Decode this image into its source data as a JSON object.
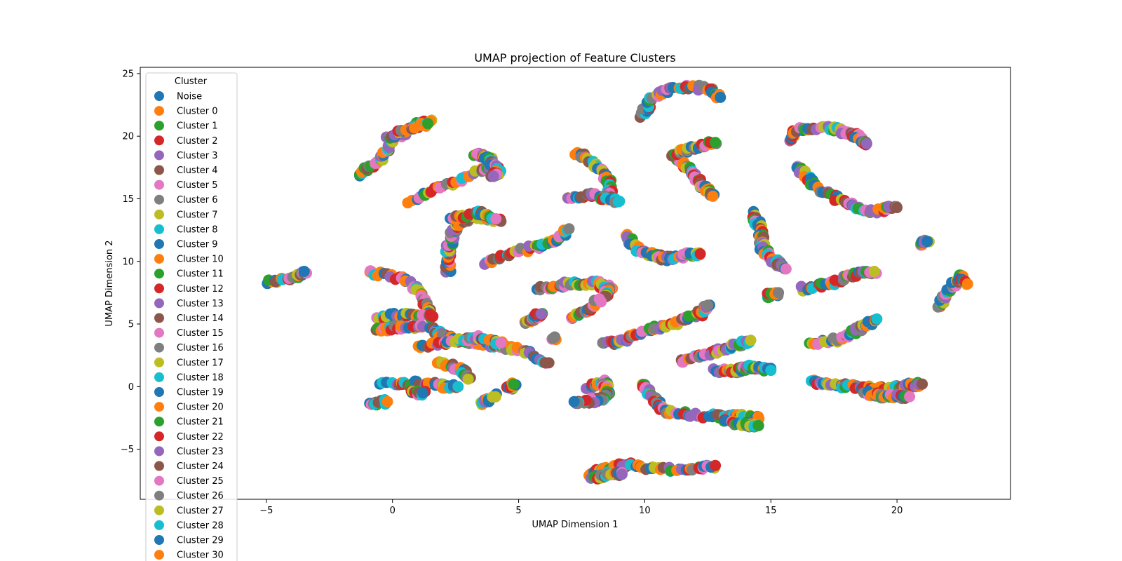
{
  "chart_data": {
    "type": "scatter",
    "title": "UMAP projection of Feature Clusters",
    "xlabel": "UMAP Dimension 1",
    "ylabel": "UMAP Dimension 2",
    "xlim": [
      -10,
      24.5
    ],
    "ylim": [
      -9,
      25.5
    ],
    "xticks": [
      -5,
      0,
      5,
      10,
      15,
      20
    ],
    "xtick_labels": [
      "−5",
      "0",
      "5",
      "10",
      "15",
      "20"
    ],
    "yticks": [
      -5,
      0,
      5,
      10,
      15,
      20,
      25
    ],
    "ytick_labels": [
      "−5",
      "0",
      "5",
      "10",
      "15",
      "20",
      "25"
    ],
    "grid": false,
    "legend": {
      "title": "Cluster",
      "placement": "upper-left"
    },
    "series": [
      {
        "name": "Noise",
        "color": "#1f77b4"
      },
      {
        "name": "Cluster 0",
        "color": "#ff7f0e"
      },
      {
        "name": "Cluster 1",
        "color": "#2ca02c"
      },
      {
        "name": "Cluster 2",
        "color": "#d62728"
      },
      {
        "name": "Cluster 3",
        "color": "#9467bd"
      },
      {
        "name": "Cluster 4",
        "color": "#8c564b"
      },
      {
        "name": "Cluster 5",
        "color": "#e377c2"
      },
      {
        "name": "Cluster 6",
        "color": "#7f7f7f"
      },
      {
        "name": "Cluster 7",
        "color": "#bcbd22"
      },
      {
        "name": "Cluster 8",
        "color": "#17becf"
      },
      {
        "name": "Cluster 9",
        "color": "#1f77b4"
      },
      {
        "name": "Cluster 10",
        "color": "#ff7f0e"
      },
      {
        "name": "Cluster 11",
        "color": "#2ca02c"
      },
      {
        "name": "Cluster 12",
        "color": "#d62728"
      },
      {
        "name": "Cluster 13",
        "color": "#9467bd"
      },
      {
        "name": "Cluster 14",
        "color": "#8c564b"
      },
      {
        "name": "Cluster 15",
        "color": "#e377c2"
      },
      {
        "name": "Cluster 16",
        "color": "#7f7f7f"
      },
      {
        "name": "Cluster 17",
        "color": "#bcbd22"
      },
      {
        "name": "Cluster 18",
        "color": "#17becf"
      },
      {
        "name": "Cluster 19",
        "color": "#1f77b4"
      },
      {
        "name": "Cluster 20",
        "color": "#ff7f0e"
      },
      {
        "name": "Cluster 21",
        "color": "#2ca02c"
      },
      {
        "name": "Cluster 22",
        "color": "#d62728"
      },
      {
        "name": "Cluster 23",
        "color": "#9467bd"
      },
      {
        "name": "Cluster 24",
        "color": "#8c564b"
      },
      {
        "name": "Cluster 25",
        "color": "#e377c2"
      },
      {
        "name": "Cluster 26",
        "color": "#7f7f7f"
      },
      {
        "name": "Cluster 27",
        "color": "#bcbd22"
      },
      {
        "name": "Cluster 28",
        "color": "#17becf"
      },
      {
        "name": "Cluster 29",
        "color": "#1f77b4"
      },
      {
        "name": "Cluster 30",
        "color": "#ff7f0e"
      }
    ],
    "point_groups": [
      {
        "path": [
          [
            -5,
            8.3
          ],
          [
            -3.8,
            8.8
          ],
          [
            -3.5,
            9.2
          ]
        ]
      },
      {
        "path": [
          [
            -1.4,
            16.8
          ],
          [
            -0.5,
            18
          ],
          [
            0,
            19.6
          ],
          [
            0.8,
            20.8
          ],
          [
            1.5,
            21.2
          ]
        ]
      },
      {
        "path": [
          [
            -0.2,
            19.8
          ],
          [
            0.6,
            20.6
          ],
          [
            1.4,
            21.0
          ]
        ]
      },
      {
        "path": [
          [
            0.7,
            14.8
          ],
          [
            2,
            16
          ],
          [
            3.5,
            17.3
          ],
          [
            4.2,
            17.5
          ]
        ]
      },
      {
        "path": [
          [
            3.3,
            18.5
          ],
          [
            3.8,
            18.3
          ],
          [
            4.2,
            17.2
          ],
          [
            4.0,
            16.8
          ]
        ]
      },
      {
        "path": [
          [
            2.2,
            9.1
          ],
          [
            2.2,
            11
          ],
          [
            2.5,
            12.8
          ],
          [
            3.2,
            13.6
          ],
          [
            4.3,
            13.2
          ]
        ]
      },
      {
        "path": [
          [
            2.3,
            13.4
          ],
          [
            3.5,
            13.9
          ],
          [
            4.1,
            13.4
          ]
        ]
      },
      {
        "path": [
          [
            3.6,
            9.8
          ],
          [
            5,
            10.8
          ],
          [
            6.3,
            11.5
          ],
          [
            7.0,
            12.6
          ]
        ]
      },
      {
        "path": [
          [
            7.3,
            18.7
          ],
          [
            8,
            17.8
          ],
          [
            8.6,
            16.4
          ],
          [
            8.6,
            15.0
          ]
        ]
      },
      {
        "path": [
          [
            7.0,
            15.0
          ],
          [
            8.0,
            15.3
          ],
          [
            9.0,
            14.8
          ]
        ]
      },
      {
        "path": [
          [
            9.9,
            21.6
          ],
          [
            10.3,
            23.2
          ],
          [
            11.5,
            24.0
          ],
          [
            12.5,
            23.8
          ],
          [
            13.0,
            23.1
          ]
        ]
      },
      {
        "path": [
          [
            11.2,
            18.4
          ],
          [
            11.8,
            17.2
          ],
          [
            12.3,
            16.0
          ],
          [
            12.7,
            15.2
          ]
        ]
      },
      {
        "path": [
          [
            11.2,
            18.6
          ],
          [
            12.0,
            19.1
          ],
          [
            12.8,
            19.5
          ]
        ]
      },
      {
        "path": [
          [
            9.2,
            12.1
          ],
          [
            9.8,
            10.8
          ],
          [
            10.8,
            10.2
          ],
          [
            11.6,
            10.5
          ],
          [
            12.2,
            10.6
          ]
        ]
      },
      {
        "path": [
          [
            15.7,
            19.8
          ],
          [
            16.2,
            20.6
          ],
          [
            17.5,
            20.6
          ],
          [
            18.3,
            20.1
          ],
          [
            18.8,
            19.4
          ]
        ]
      },
      {
        "path": [
          [
            16.0,
            17.6
          ],
          [
            16.8,
            16.0
          ],
          [
            18.0,
            14.6
          ],
          [
            19.0,
            14.0
          ],
          [
            20.0,
            14.3
          ]
        ]
      },
      {
        "path": [
          [
            14.3,
            13.8
          ],
          [
            14.6,
            12.5
          ],
          [
            14.7,
            11.0
          ],
          [
            15.2,
            9.9
          ],
          [
            15.6,
            9.4
          ]
        ]
      },
      {
        "path": [
          [
            14.8,
            7.2
          ],
          [
            15.3,
            7.5
          ]
        ]
      },
      {
        "path": [
          [
            16.2,
            7.8
          ],
          [
            17.5,
            8.3
          ],
          [
            18.5,
            9.0
          ],
          [
            19.1,
            9.2
          ]
        ]
      },
      {
        "path": [
          [
            16.5,
            3.4
          ],
          [
            17.8,
            3.8
          ],
          [
            18.5,
            4.6
          ],
          [
            19.2,
            5.4
          ]
        ]
      },
      {
        "path": [
          [
            20.9,
            11.3
          ],
          [
            21.2,
            11.6
          ]
        ]
      },
      {
        "path": [
          [
            21.6,
            6.3
          ],
          [
            22.0,
            7.5
          ],
          [
            22.5,
            8.8
          ],
          [
            22.8,
            8.2
          ]
        ]
      },
      {
        "path": [
          [
            -1.0,
            9.2
          ],
          [
            0.5,
            8.5
          ],
          [
            1.2,
            7.2
          ],
          [
            1.5,
            5.5
          ]
        ]
      },
      {
        "path": [
          [
            -0.6,
            5.5
          ],
          [
            0.5,
            5.8
          ],
          [
            1.6,
            5.6
          ]
        ]
      },
      {
        "path": [
          [
            -0.7,
            4.5
          ],
          [
            0.5,
            4.8
          ],
          [
            1.2,
            4.8
          ]
        ]
      },
      {
        "path": [
          [
            1.5,
            4.6
          ],
          [
            2.2,
            3.9
          ],
          [
            3.0,
            3.6
          ],
          [
            4.0,
            3.3
          ],
          [
            5.2,
            2.9
          ],
          [
            6.2,
            1.9
          ]
        ]
      },
      {
        "path": [
          [
            1.0,
            3.1
          ],
          [
            2.5,
            3.6
          ],
          [
            3.5,
            3.9
          ],
          [
            4.3,
            3.5
          ]
        ]
      },
      {
        "path": [
          [
            -0.4,
            0.2
          ],
          [
            1.0,
            0.3
          ],
          [
            2.0,
            0.2
          ]
        ]
      },
      {
        "path": [
          [
            1.8,
            1.9
          ],
          [
            2.7,
            1.4
          ],
          [
            3.0,
            0.6
          ]
        ]
      },
      {
        "path": [
          [
            2.0,
            0
          ],
          [
            2.6,
            0
          ]
        ]
      },
      {
        "path": [
          [
            0.8,
            -0.5
          ],
          [
            1.2,
            -0.5
          ]
        ]
      },
      {
        "path": [
          [
            -0.9,
            -1.4
          ],
          [
            -0.2,
            -1.2
          ]
        ]
      },
      {
        "path": [
          [
            3.5,
            -1.4
          ],
          [
            3.8,
            -1.1
          ]
        ]
      },
      {
        "path": [
          [
            4.0,
            -0.7
          ]
        ]
      },
      {
        "path": [
          [
            4.6,
            -0.1
          ],
          [
            4.8,
            0.2
          ]
        ]
      },
      {
        "path": [
          [
            6.4,
            3.9
          ]
        ]
      },
      {
        "path": [
          [
            5.3,
            5.1
          ],
          [
            5.7,
            5.6
          ],
          [
            5.9,
            5.8
          ]
        ]
      },
      {
        "path": [
          [
            5.8,
            7.8
          ],
          [
            7.0,
            8.2
          ],
          [
            8.0,
            8.3
          ],
          [
            8.6,
            7.9
          ],
          [
            8.4,
            7.2
          ]
        ]
      },
      {
        "path": [
          [
            7.1,
            5.4
          ],
          [
            7.8,
            6.2
          ],
          [
            8.2,
            7.0
          ]
        ]
      },
      {
        "path": [
          [
            8.4,
            3.4
          ],
          [
            9.2,
            3.8
          ],
          [
            10.2,
            4.6
          ],
          [
            11.2,
            5.0
          ],
          [
            12.2,
            5.8
          ],
          [
            12.5,
            6.5
          ]
        ]
      },
      {
        "path": [
          [
            11.4,
            2.0
          ],
          [
            12.5,
            2.6
          ],
          [
            13.5,
            3.2
          ],
          [
            14.2,
            3.7
          ]
        ]
      },
      {
        "path": [
          [
            12.8,
            1.3
          ],
          [
            13.6,
            1.2
          ],
          [
            14.2,
            1.6
          ],
          [
            15.0,
            1.3
          ]
        ]
      },
      {
        "path": [
          [
            7.8,
            0
          ],
          [
            8.4,
            0.4
          ],
          [
            8.5,
            -0.5
          ],
          [
            8.2,
            -1.1
          ],
          [
            7.2,
            -1.2
          ]
        ]
      },
      {
        "path": [
          [
            9.9,
            0.2
          ],
          [
            10.4,
            -1.0
          ],
          [
            10.8,
            -2.0
          ],
          [
            12,
            -2.3
          ],
          [
            13.5,
            -2.4
          ],
          [
            14.5,
            -2.4
          ]
        ]
      },
      {
        "path": [
          [
            13.2,
            -2.8
          ],
          [
            14.0,
            -3.0
          ],
          [
            14.5,
            -3.1
          ]
        ]
      },
      {
        "path": [
          [
            7.8,
            -7.1
          ],
          [
            8.5,
            -6.5
          ],
          [
            9.4,
            -6.2
          ],
          [
            10.5,
            -6.6
          ],
          [
            12.0,
            -6.6
          ],
          [
            12.8,
            -6.3
          ]
        ]
      },
      {
        "path": [
          [
            7.9,
            -7.3
          ],
          [
            8.6,
            -7.0
          ],
          [
            9.1,
            -7.0
          ]
        ]
      },
      {
        "path": [
          [
            16.6,
            0.4
          ],
          [
            17.5,
            0.2
          ],
          [
            18.5,
            -0.1
          ],
          [
            19.5,
            -0.2
          ],
          [
            20.5,
            0.1
          ],
          [
            21.0,
            0.2
          ]
        ]
      },
      {
        "path": [
          [
            18.8,
            -0.5
          ],
          [
            19.6,
            -0.8
          ],
          [
            20.5,
            -0.8
          ]
        ]
      }
    ]
  }
}
